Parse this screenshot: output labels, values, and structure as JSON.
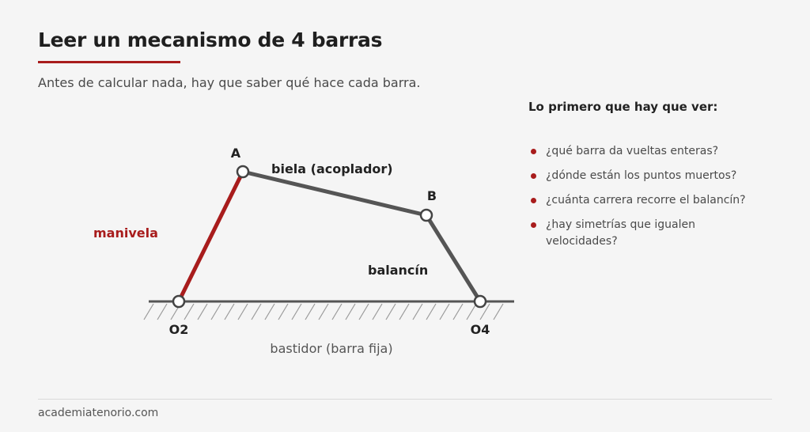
{
  "header": {
    "title": "Leer un mecanismo de 4 barras",
    "subtitle": "Antes de calcular nada, hay que saber qué hace cada barra."
  },
  "diagram": {
    "joints": {
      "a": "A",
      "b": "B",
      "o2": "O2",
      "o4": "O4"
    },
    "links": {
      "crank": "manivela",
      "coupler": "biela (acoplador)",
      "rocker": "balancín",
      "frame": "bastidor (barra fija)"
    },
    "colors": {
      "crank": "#a81c1c",
      "link": "#555555",
      "accent": "#a81c1c"
    }
  },
  "panel": {
    "title": "Lo primero que hay que ver:",
    "items": [
      "¿qué barra da vueltas enteras?",
      "¿dónde están los puntos muertos?",
      "¿cuánta carrera recorre el balancín?",
      "¿hay simetrías que igualen velocidades?"
    ]
  },
  "footer": {
    "site": "academiatenorio.com"
  }
}
